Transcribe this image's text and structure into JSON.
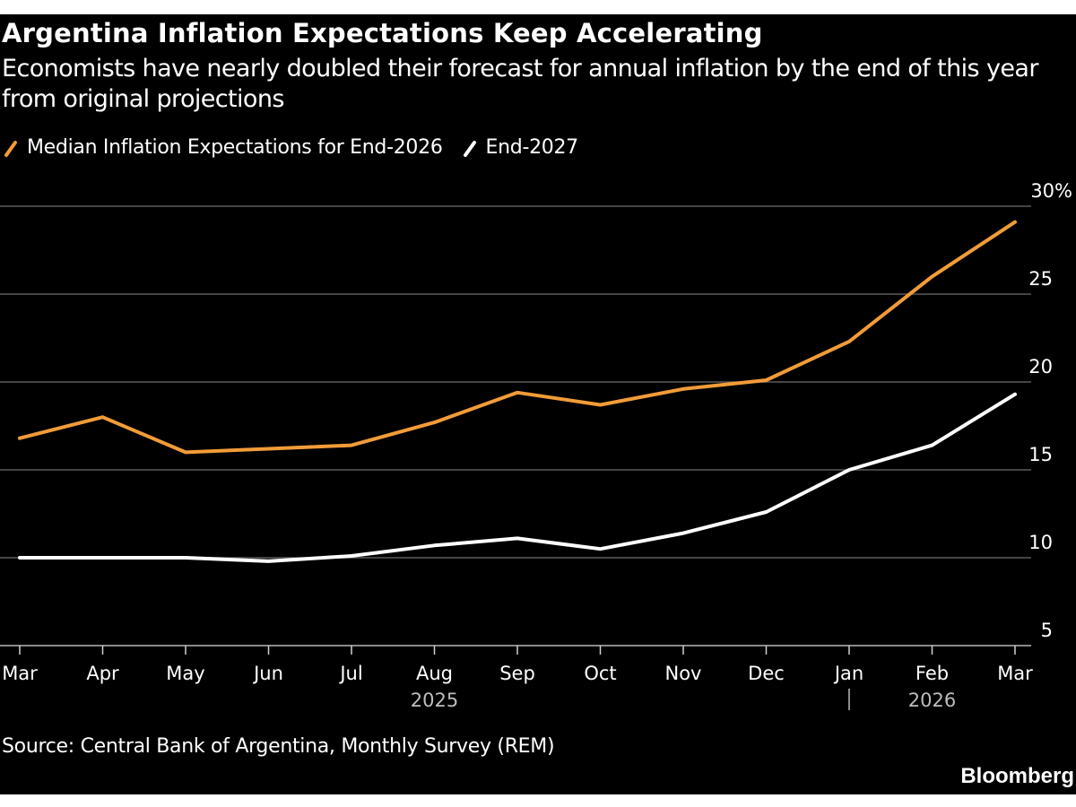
{
  "header": {
    "title": "Argentina Inflation Expectations Keep Accelerating",
    "subtitle": "Economists have nearly doubled their forecast for annual inflation by the end of this year from original projections"
  },
  "legend": [
    {
      "label": "Median Inflation Expectations for End-2026",
      "color": "#f29c38",
      "icon": "slash-swatch-icon"
    },
    {
      "label": "End-2027",
      "color": "#ffffff",
      "icon": "slash-swatch-icon"
    }
  ],
  "footer": {
    "source": "Source: Central Bank of Argentina, Monthly Survey (REM)",
    "brand": "Bloomberg"
  },
  "chart_data": {
    "type": "line",
    "title": "Argentina Inflation Expectations Keep Accelerating",
    "subtitle": "Economists have nearly doubled their forecast for annual inflation by the end of this year from original projections",
    "xlabel": "",
    "ylabel": "",
    "categories": [
      "Mar",
      "Apr",
      "May",
      "Jun",
      "Jul",
      "Aug",
      "Sep",
      "Oct",
      "Nov",
      "Dec",
      "Jan",
      "Feb",
      "Mar"
    ],
    "year_labels": [
      {
        "label": "2025",
        "under": "Aug"
      },
      {
        "label": "2026",
        "under": "Feb"
      }
    ],
    "year_divider_at": "Jan",
    "series": [
      {
        "name": "Median Inflation Expectations for End-2026",
        "color": "#f29c38",
        "values": [
          16.8,
          18.0,
          16.0,
          16.2,
          16.4,
          17.7,
          19.4,
          18.7,
          19.6,
          20.1,
          22.3,
          26.0,
          29.1
        ]
      },
      {
        "name": "End-2027",
        "color": "#ffffff",
        "values": [
          10.0,
          10.0,
          10.0,
          9.8,
          10.1,
          10.7,
          11.1,
          10.5,
          11.4,
          12.6,
          15.0,
          16.4,
          19.3
        ]
      }
    ],
    "ylim": [
      5,
      30
    ],
    "yticks": [
      5,
      10,
      15,
      20,
      25,
      30
    ],
    "ytick_labels": [
      "5",
      "10",
      "15",
      "20",
      "25",
      "30%"
    ],
    "y_axis_side": "right",
    "grid": true,
    "legend_position": "top-left",
    "grid_color": "#5a5a5a",
    "background": "#000000"
  }
}
